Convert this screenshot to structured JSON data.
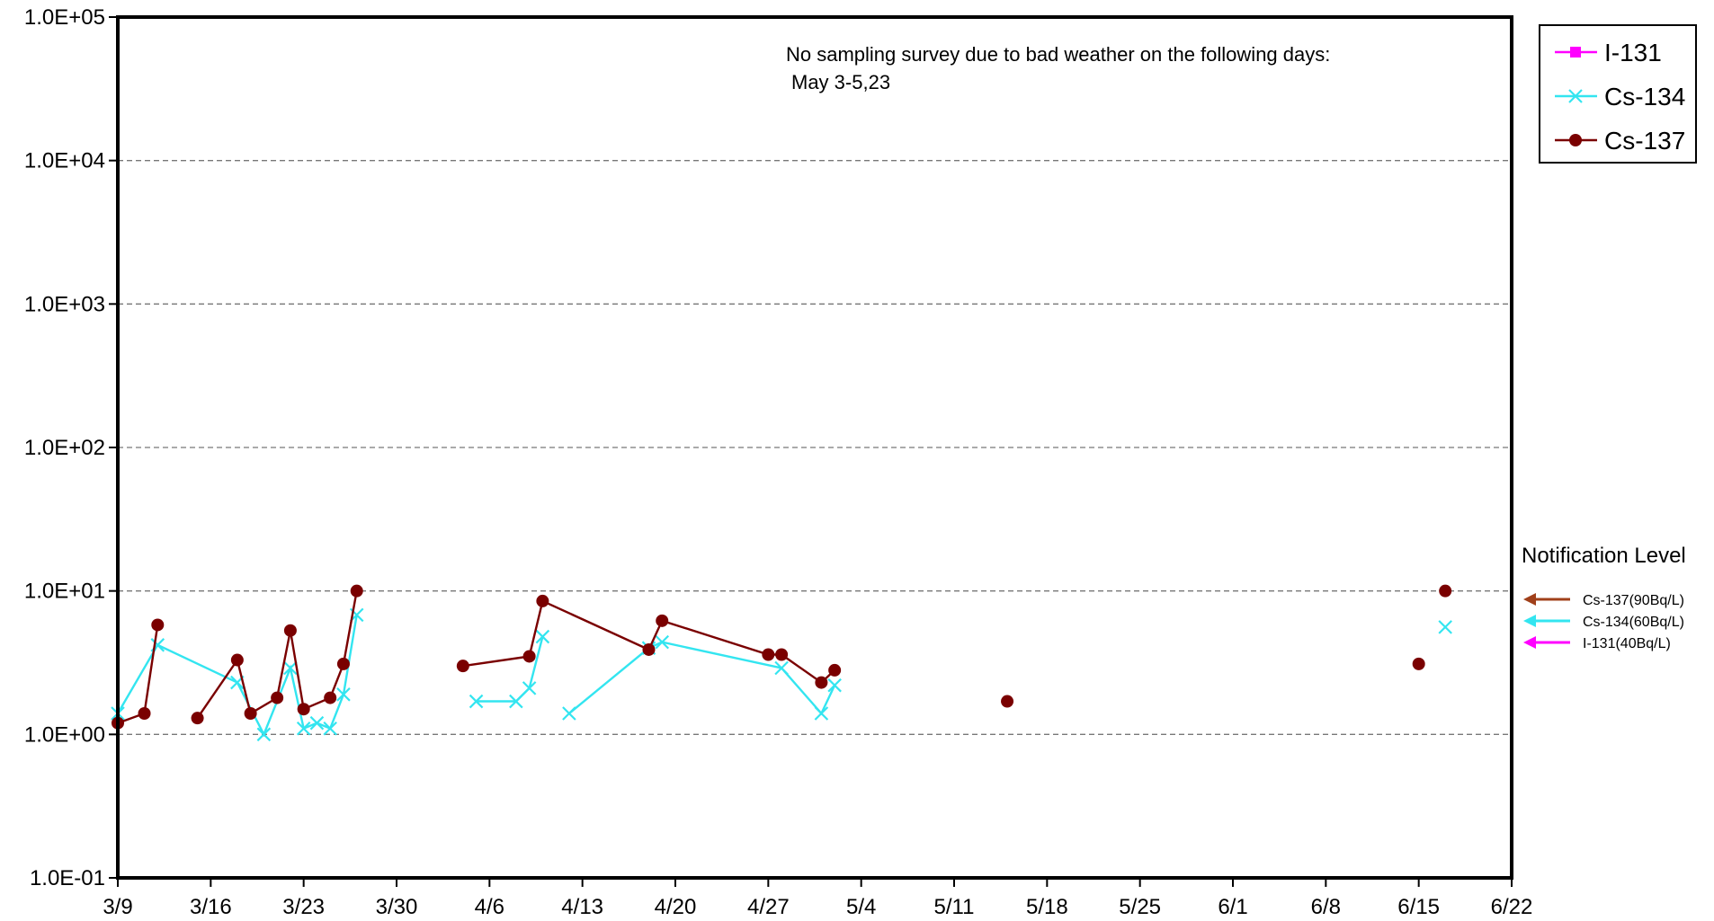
{
  "colors": {
    "i131": "#ff00ff",
    "cs134": "#33e5f0",
    "cs137": "#7a0000",
    "cs137_arrow": "#a0401a"
  },
  "chart_data": {
    "type": "line",
    "yscale": "log",
    "ylim": [
      0.1,
      100000
    ],
    "y_ticks": [
      "1.0E-01",
      "1.0E+00",
      "1.0E+01",
      "1.0E+02",
      "1.0E+03",
      "1.0E+04",
      "1.0E+05"
    ],
    "x_range": [
      "2011-03-09",
      "2011-06-22"
    ],
    "x_ticks": [
      "3/9",
      "3/16",
      "3/23",
      "3/30",
      "4/6",
      "4/13",
      "4/20",
      "4/27",
      "5/4",
      "5/11",
      "5/18",
      "5/25",
      "6/1",
      "6/8",
      "6/15",
      "6/22"
    ],
    "grid": "horizontal dashed",
    "legend_position": "top-right",
    "annotation": [
      "No sampling survey due to bad weather on the following days:",
      "May 3-5,23"
    ],
    "series": [
      {
        "name": "I-131",
        "marker": "square",
        "color": "#ff00ff",
        "points": []
      },
      {
        "name": "Cs-134",
        "marker": "x",
        "color": "#33e5f0",
        "points": [
          [
            "2011-03-09",
            1.4
          ],
          [
            "2011-03-12",
            4.2
          ],
          [
            "2011-03-18",
            2.3
          ],
          [
            "2011-03-20",
            1.0
          ],
          [
            "2011-03-22",
            2.9
          ],
          [
            "2011-03-23",
            1.1
          ],
          [
            "2011-03-24",
            1.2
          ],
          [
            "2011-03-25",
            1.1
          ],
          [
            "2011-03-26",
            1.9
          ],
          [
            "2011-03-27",
            6.8
          ],
          null,
          [
            "2011-04-05",
            1.7
          ],
          [
            "2011-04-08",
            1.7
          ],
          [
            "2011-04-09",
            2.1
          ],
          [
            "2011-04-10",
            4.8
          ],
          null,
          [
            "2011-04-12",
            1.4
          ],
          [
            "2011-04-18",
            4.0
          ],
          [
            "2011-04-19",
            4.4
          ],
          [
            "2011-04-28",
            2.9
          ],
          [
            "2011-05-01",
            1.4
          ],
          [
            "2011-05-02",
            2.2
          ],
          null,
          [
            "2011-06-17",
            5.6
          ]
        ]
      },
      {
        "name": "Cs-137",
        "marker": "circle",
        "color": "#7a0000",
        "points": [
          [
            "2011-03-09",
            1.2
          ],
          [
            "2011-03-11",
            1.4
          ],
          [
            "2011-03-12",
            5.8
          ],
          null,
          [
            "2011-03-15",
            1.3
          ],
          [
            "2011-03-18",
            3.3
          ],
          [
            "2011-03-19",
            1.4
          ],
          [
            "2011-03-21",
            1.8
          ],
          [
            "2011-03-22",
            5.3
          ],
          [
            "2011-03-23",
            1.5
          ],
          [
            "2011-03-25",
            1.8
          ],
          [
            "2011-03-26",
            3.1
          ],
          [
            "2011-03-27",
            10.0
          ],
          null,
          [
            "2011-04-04",
            3.0
          ],
          [
            "2011-04-09",
            3.5
          ],
          [
            "2011-04-10",
            8.5
          ],
          [
            "2011-04-18",
            3.9
          ],
          [
            "2011-04-19",
            6.2
          ],
          [
            "2011-04-27",
            3.6
          ],
          [
            "2011-04-28",
            3.6
          ],
          [
            "2011-05-01",
            2.3
          ],
          [
            "2011-05-02",
            2.8
          ],
          null,
          [
            "2011-05-15",
            1.7
          ],
          null,
          [
            "2011-06-15",
            3.1
          ],
          null,
          [
            "2011-06-17",
            10.0
          ]
        ]
      }
    ]
  },
  "notification": {
    "title": "Notification Level",
    "items": [
      {
        "label": "Cs-137(90Bq/L)",
        "color": "#a0401a"
      },
      {
        "label": "Cs-134(60Bq/L)",
        "color": "#33e5f0"
      },
      {
        "label": "I-131(40Bq/L)",
        "color": "#ff00ff"
      }
    ]
  }
}
